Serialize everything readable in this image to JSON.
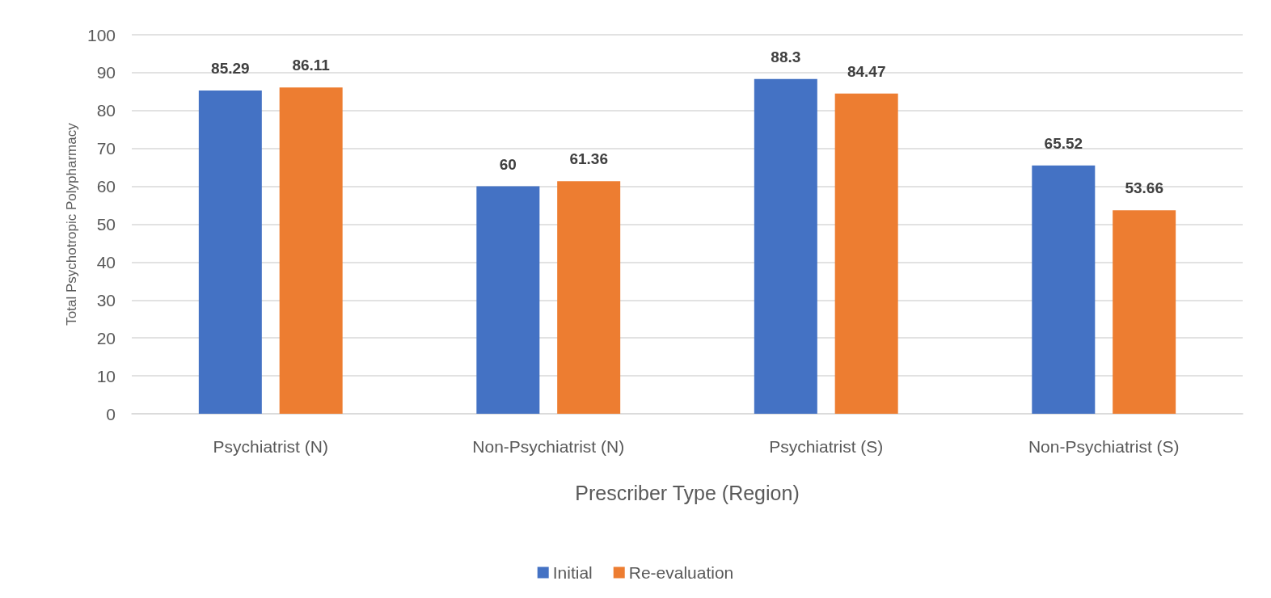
{
  "chart_data": {
    "type": "bar",
    "xlabel": "Prescriber Type (Region)",
    "ylabel": "Total Psychotropic Polypharmacy",
    "categories": [
      "Psychiatrist (N)",
      "Non-Psychiatrist (N)",
      "Psychiatrist (S)",
      "Non-Psychiatrist (S)"
    ],
    "series": [
      {
        "name": "Initial",
        "color": "#4472c4",
        "values": [
          85.29,
          60,
          88.3,
          65.52
        ]
      },
      {
        "name": "Re-evaluation",
        "color": "#ed7d31",
        "values": [
          86.11,
          61.36,
          84.47,
          53.66
        ]
      }
    ],
    "ylim": [
      0,
      100
    ],
    "yticks": [
      0,
      10,
      20,
      30,
      40,
      50,
      60,
      70,
      80,
      90,
      100
    ],
    "grid": "y",
    "legend": "bottom",
    "data_labels": true
  }
}
